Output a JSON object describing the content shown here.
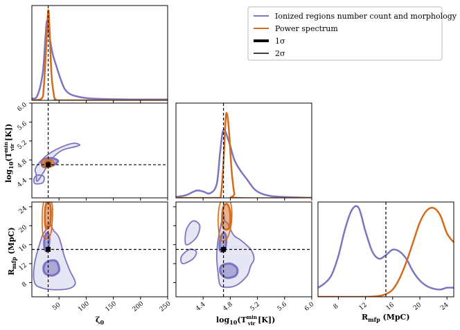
{
  "chart_data": {
    "type": "corner",
    "parameters": [
      {
        "symbol": "ζ₀",
        "label": "ζ0",
        "range": [
          0,
          250
        ],
        "ticks": [
          50,
          100,
          150,
          200,
          250
        ],
        "truth": 30
      },
      {
        "symbol": "log10(Tvir_min [K])",
        "label": "log10(T_vir^min [K])",
        "range": [
          4.0,
          6.0
        ],
        "ticks": [
          4.4,
          4.8,
          5.2,
          5.6,
          6.0
        ],
        "truth": 4.7
      },
      {
        "symbol": "R_mfp (MpC)",
        "label": "R_mfp (MpC)",
        "range": [
          5,
          25
        ],
        "ticks": [
          8,
          12,
          16,
          20,
          24
        ],
        "truth": 15
      }
    ],
    "axis_text": {
      "zeta_label": "ζ",
      "zeta_sub": "0",
      "t_log": "log",
      "t_log_sub": "10",
      "t_open": "(T",
      "t_sup": "min",
      "t_sub": "vir",
      "t_close": " [K])",
      "r_main": "R",
      "r_sub": "mfp",
      "r_unit": " (MpC)"
    },
    "x_tick_labels": {
      "zeta": [
        "50",
        "100",
        "150",
        "200",
        "250"
      ],
      "tvir": [
        "4.4",
        "4.8",
        "5.2",
        "5.6",
        "6.0"
      ],
      "rmfp": [
        "8",
        "12",
        "16",
        "20",
        "24"
      ]
    },
    "y_tick_labels": {
      "tvir": [
        "4.4",
        "4.8",
        "5.2",
        "5.6",
        "6.0"
      ],
      "rmfp": [
        "8",
        "12",
        "16",
        "20",
        "24"
      ]
    },
    "legend": {
      "entries": [
        {
          "label": "Ionized regions number count and morphology",
          "color": "#7b75c0",
          "style": "thin"
        },
        {
          "label": "Power spectrum",
          "color": "#d46a1c",
          "style": "thin"
        },
        {
          "label": "1σ",
          "color": "#000000",
          "style": "thick"
        },
        {
          "label": "2σ",
          "color": "#000000",
          "style": "thin"
        }
      ],
      "placement": "top-right"
    },
    "series": [
      {
        "name": "Ionized regions number count and morphology",
        "color": "#7b75c0",
        "marginals": {
          "zeta": [
            [
              0,
              0.02
            ],
            [
              10,
              0.05
            ],
            [
              20,
              0.3
            ],
            [
              25,
              0.7
            ],
            [
              28,
              0.88
            ],
            [
              32,
              0.72
            ],
            [
              38,
              0.52
            ],
            [
              45,
              0.38
            ],
            [
              52,
              0.25
            ],
            [
              60,
              0.13
            ],
            [
              70,
              0.07
            ],
            [
              85,
              0.04
            ],
            [
              100,
              0.025
            ],
            [
              130,
              0.015
            ],
            [
              180,
              0.01
            ],
            [
              250,
              0.01
            ]
          ],
          "tvir": [
            [
              4.0,
              0.01
            ],
            [
              4.15,
              0.03
            ],
            [
              4.3,
              0.08
            ],
            [
              4.4,
              0.07
            ],
            [
              4.5,
              0.05
            ],
            [
              4.6,
              0.15
            ],
            [
              4.65,
              0.5
            ],
            [
              4.7,
              0.75
            ],
            [
              4.78,
              0.62
            ],
            [
              4.86,
              0.42
            ],
            [
              4.95,
              0.3
            ],
            [
              5.05,
              0.2
            ],
            [
              5.15,
              0.1
            ],
            [
              5.25,
              0.05
            ],
            [
              5.4,
              0.02
            ],
            [
              5.6,
              0.01
            ],
            [
              6.0,
              0.0
            ]
          ],
          "rmfp": [
            [
              5,
              0.1
            ],
            [
              6,
              0.15
            ],
            [
              7,
              0.24
            ],
            [
              8,
              0.45
            ],
            [
              9,
              0.75
            ],
            [
              10,
              0.96
            ],
            [
              11,
              0.98
            ],
            [
              12,
              0.72
            ],
            [
              13,
              0.5
            ],
            [
              14,
              0.42
            ],
            [
              15,
              0.46
            ],
            [
              16,
              0.52
            ],
            [
              17,
              0.5
            ],
            [
              18,
              0.42
            ],
            [
              19,
              0.28
            ],
            [
              20,
              0.18
            ],
            [
              21,
              0.12
            ],
            [
              22,
              0.09
            ],
            [
              23,
              0.08
            ],
            [
              24,
              0.1
            ],
            [
              25,
              0.1
            ]
          ]
        }
      },
      {
        "name": "Power spectrum",
        "color": "#d46a1c",
        "marginals": {
          "zeta": [
            [
              0,
              0
            ],
            [
              18,
              0.02
            ],
            [
              22,
              0.15
            ],
            [
              26,
              0.55
            ],
            [
              29,
              0.92
            ],
            [
              31,
              0.98
            ],
            [
              33,
              0.72
            ],
            [
              36,
              0.3
            ],
            [
              40,
              0.08
            ],
            [
              44,
              0.01
            ],
            [
              60,
              0
            ],
            [
              250,
              0
            ]
          ],
          "tvir": [
            [
              4.0,
              0
            ],
            [
              4.6,
              0
            ],
            [
              4.66,
              0.02
            ],
            [
              4.7,
              0.4
            ],
            [
              4.73,
              0.85
            ],
            [
              4.75,
              0.93
            ],
            [
              4.78,
              0.75
            ],
            [
              4.82,
              0.3
            ],
            [
              4.86,
              0.05
            ],
            [
              4.9,
              0
            ],
            [
              6.0,
              0
            ]
          ],
          "rmfp": [
            [
              5,
              0
            ],
            [
              12,
              0
            ],
            [
              14,
              0.01
            ],
            [
              15,
              0.03
            ],
            [
              16,
              0.08
            ],
            [
              17,
              0.2
            ],
            [
              18,
              0.38
            ],
            [
              19,
              0.6
            ],
            [
              20,
              0.82
            ],
            [
              21,
              0.95
            ],
            [
              22,
              0.98
            ],
            [
              23,
              0.9
            ],
            [
              24,
              0.7
            ],
            [
              25,
              0.6
            ]
          ]
        }
      }
    ],
    "contours": {
      "zeta_tvir": {
        "ion_2sigma": [
          [
            10,
            4.35
          ],
          [
            22,
            4.55
          ],
          [
            35,
            4.8
          ],
          [
            55,
            5.0
          ],
          [
            80,
            5.08
          ],
          [
            88,
            5.12
          ],
          [
            75,
            5.15
          ],
          [
            50,
            5.05
          ],
          [
            28,
            4.9
          ],
          [
            12,
            4.72
          ],
          [
            6,
            4.6
          ],
          [
            8,
            4.5
          ]
        ],
        "ion_blob": [
          [
            6,
            4.3
          ],
          [
            20,
            4.32
          ],
          [
            22,
            4.45
          ],
          [
            10,
            4.48
          ],
          [
            4,
            4.4
          ]
        ],
        "ion_1sigma": [
          [
            22,
            4.65
          ],
          [
            38,
            4.68
          ],
          [
            48,
            4.78
          ],
          [
            35,
            4.84
          ],
          [
            20,
            4.8
          ],
          [
            18,
            4.72
          ]
        ],
        "ps_2sigma": [
          [
            22,
            4.64
          ],
          [
            38,
            4.67
          ],
          [
            40,
            4.77
          ],
          [
            28,
            4.82
          ],
          [
            18,
            4.76
          ]
        ],
        "ps_1sigma": [
          [
            26,
            4.68
          ],
          [
            35,
            4.7
          ],
          [
            35,
            4.76
          ],
          [
            27,
            4.78
          ],
          [
            23,
            4.73
          ]
        ]
      },
      "tvir_rmfp": {
        "ion_2sigma": [
          [
            4.7,
            22.5
          ],
          [
            4.72,
            21
          ],
          [
            4.76,
            20.5
          ],
          [
            4.85,
            18
          ],
          [
            4.95,
            17
          ],
          [
            5.1,
            15
          ],
          [
            5.15,
            13
          ],
          [
            5.1,
            11.5
          ],
          [
            5.05,
            9.5
          ],
          [
            4.9,
            7.5
          ],
          [
            4.75,
            7
          ],
          [
            4.65,
            7.5
          ],
          [
            4.62,
            10
          ],
          [
            4.6,
            13.5
          ],
          [
            4.62,
            17
          ],
          [
            4.66,
            20
          ]
        ],
        "ion_1sigma_a": [
          [
            4.65,
            14.8
          ],
          [
            4.72,
            14.8
          ],
          [
            4.74,
            17.5
          ],
          [
            4.7,
            18.5
          ],
          [
            4.65,
            17
          ]
        ],
        "ion_1sigma_b": [
          [
            4.67,
            11.5
          ],
          [
            4.8,
            12
          ],
          [
            4.9,
            11
          ],
          [
            4.88,
            9.5
          ],
          [
            4.75,
            9
          ],
          [
            4.66,
            10
          ]
        ],
        "ion_side": [
          [
            4.15,
            16
          ],
          [
            4.3,
            17.5
          ],
          [
            4.35,
            20
          ],
          [
            4.25,
            21
          ],
          [
            4.15,
            19
          ]
        ],
        "ion_side2": [
          [
            4.1,
            12
          ],
          [
            4.25,
            13
          ],
          [
            4.3,
            14.5
          ],
          [
            4.2,
            15
          ],
          [
            4.08,
            13.5
          ]
        ],
        "ps_2sigma": [
          [
            4.66,
            17
          ],
          [
            4.76,
            17.5
          ],
          [
            4.82,
            21
          ],
          [
            4.8,
            25
          ],
          [
            4.66,
            25
          ],
          [
            4.62,
            21
          ]
        ],
        "ps_1sigma": [
          [
            4.7,
            19.5
          ],
          [
            4.78,
            19.5
          ],
          [
            4.8,
            22.5
          ],
          [
            4.76,
            24.5
          ],
          [
            4.7,
            24
          ],
          [
            4.68,
            21.5
          ]
        ]
      },
      "zeta_rmfp": {
        "ion_2sigma": [
          [
            5,
            8
          ],
          [
            20,
            6.8
          ],
          [
            45,
            6.5
          ],
          [
            70,
            6.8
          ],
          [
            80,
            8
          ],
          [
            70,
            10.5
          ],
          [
            60,
            13.5
          ],
          [
            50,
            17.5
          ],
          [
            40,
            19
          ],
          [
            32,
            20.5
          ],
          [
            25,
            19
          ],
          [
            18,
            17.5
          ],
          [
            5,
            12
          ]
        ],
        "ion_1sigma_a": [
          [
            24,
            15
          ],
          [
            30,
            14.8
          ],
          [
            32,
            17.5
          ],
          [
            28,
            18.5
          ],
          [
            23,
            17
          ]
        ],
        "ion_1sigma_b": [
          [
            24,
            10
          ],
          [
            38,
            9.5
          ],
          [
            50,
            10.5
          ],
          [
            45,
            12.5
          ],
          [
            30,
            12.5
          ],
          [
            22,
            11.5
          ]
        ],
        "ps_2sigma": [
          [
            22,
            17.5
          ],
          [
            34,
            18
          ],
          [
            38,
            22
          ],
          [
            36,
            25
          ],
          [
            22,
            25
          ],
          [
            19,
            21
          ]
        ],
        "ps_1sigma": [
          [
            26,
            19.5
          ],
          [
            33,
            20
          ],
          [
            35,
            23
          ],
          [
            32,
            25
          ],
          [
            26,
            24.5
          ],
          [
            24,
            22
          ]
        ]
      }
    }
  }
}
